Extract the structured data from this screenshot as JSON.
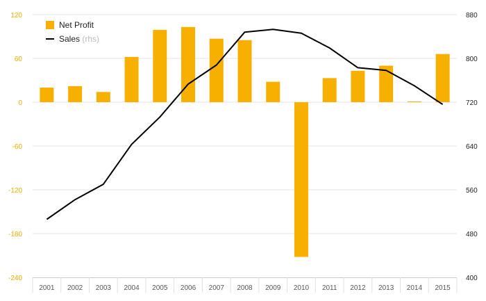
{
  "chart_data": {
    "type": "bar",
    "categories": [
      "2001",
      "2002",
      "2003",
      "2004",
      "2005",
      "2006",
      "2007",
      "2008",
      "2009",
      "2010",
      "2011",
      "2012",
      "2013",
      "2014",
      "2015"
    ],
    "series": [
      {
        "name": "Net Profit",
        "type": "bar",
        "axis": "left",
        "color": "#f8b000",
        "values": [
          20,
          22,
          14,
          62,
          99,
          103,
          87,
          85,
          28,
          -212,
          33,
          43,
          50,
          1,
          66
        ]
      },
      {
        "name": "Sales",
        "type": "line",
        "axis": "right",
        "color": "#000000",
        "values": [
          506,
          542,
          570,
          643,
          693,
          753,
          788,
          848,
          853,
          846,
          819,
          783,
          778,
          750,
          716
        ]
      }
    ],
    "title": "",
    "xlabel": "",
    "ylabel": "",
    "ylim": [
      -240,
      120
    ],
    "y_ticks": [
      120,
      60,
      0,
      -60,
      -120,
      -180,
      -240
    ],
    "y2lim": [
      400,
      880
    ],
    "y2_ticks": [
      880,
      800,
      720,
      640,
      560,
      480,
      400
    ],
    "grid": true,
    "legend": {
      "placement": "top-left",
      "entries": [
        {
          "label": "Net Profit",
          "suffix": "",
          "marker": "square",
          "color": "#f8b000"
        },
        {
          "label": "Sales",
          "suffix": " (rhs)",
          "marker": "line",
          "color": "#000000"
        }
      ]
    }
  }
}
